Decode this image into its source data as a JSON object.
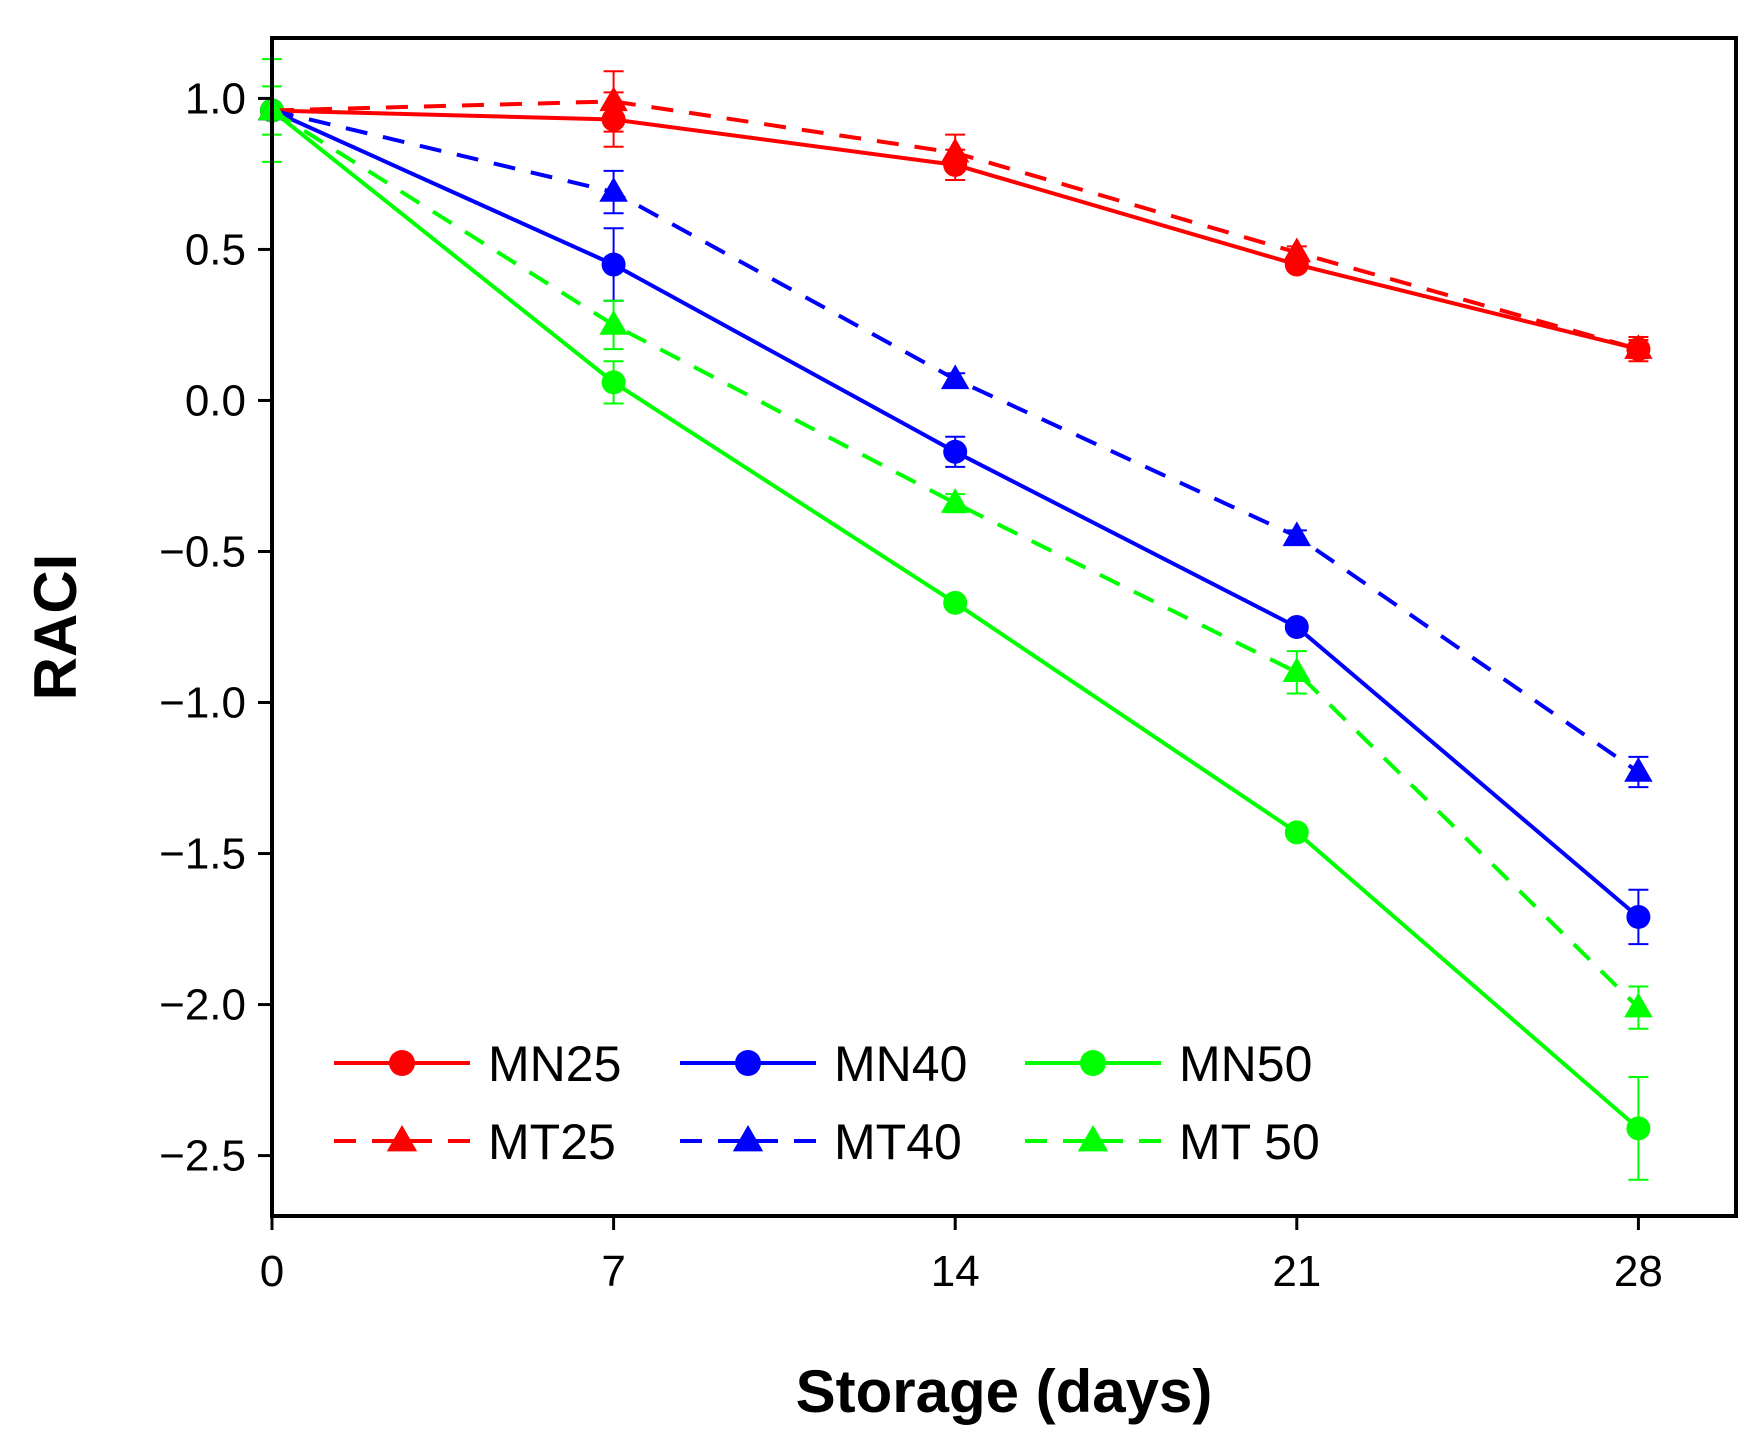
{
  "chart_data": {
    "type": "line",
    "xlabel": "Storage (days)",
    "ylabel": "RACI",
    "xlim": [
      0,
      30
    ],
    "ylim": [
      -2.7,
      1.2
    ],
    "xticks": [
      0,
      7,
      14,
      21,
      28
    ],
    "xtick_labels": [
      "0",
      "7",
      "14",
      "21",
      "28"
    ],
    "yticks": [
      1.0,
      0.5,
      0.0,
      -0.5,
      -1.0,
      -1.5,
      -2.0,
      -2.5
    ],
    "ytick_labels": [
      "1.0",
      "0.5",
      "0.0",
      "−0.5",
      "−1.0",
      "−1.5",
      "−2.0",
      "−2.5"
    ],
    "grid": false,
    "legend_position": "bottom-left",
    "x": [
      0,
      7,
      14,
      21,
      28
    ],
    "series": [
      {
        "name": "MN25",
        "color": "#ff0000",
        "dash": "solid",
        "marker": "circle",
        "values": [
          0.96,
          0.93,
          0.78,
          0.45,
          0.17
        ],
        "errors": [
          0.0,
          0.09,
          0.05,
          0.02,
          0.04
        ]
      },
      {
        "name": "MN40",
        "color": "#0000ff",
        "dash": "solid",
        "marker": "circle",
        "values": [
          0.96,
          0.45,
          -0.17,
          -0.75,
          -1.71
        ],
        "errors": [
          0.0,
          0.12,
          0.05,
          0.02,
          0.09
        ]
      },
      {
        "name": "MN50",
        "color": "#00ff00",
        "dash": "solid",
        "marker": "circle",
        "values": [
          0.96,
          0.06,
          -0.67,
          -1.43,
          -2.41
        ],
        "errors": [
          0.17,
          0.07,
          0.02,
          0.02,
          0.17
        ]
      },
      {
        "name": "MT25",
        "color": "#ff0000",
        "dash": "dashed",
        "marker": "triangle",
        "values": [
          0.96,
          0.99,
          0.82,
          0.49,
          0.17
        ],
        "errors": [
          0.0,
          0.1,
          0.06,
          0.02,
          0.03
        ]
      },
      {
        "name": "MT40",
        "color": "#0000ff",
        "dash": "dashed",
        "marker": "triangle",
        "values": [
          0.96,
          0.69,
          0.07,
          -0.45,
          -1.23
        ],
        "errors": [
          0.0,
          0.07,
          0.02,
          0.02,
          0.05
        ]
      },
      {
        "name": "MT 50",
        "color": "#00ff00",
        "dash": "dashed",
        "marker": "triangle",
        "values": [
          0.96,
          0.25,
          -0.34,
          -0.9,
          -2.01
        ],
        "errors": [
          0.08,
          0.08,
          0.03,
          0.07,
          0.07
        ]
      }
    ]
  }
}
